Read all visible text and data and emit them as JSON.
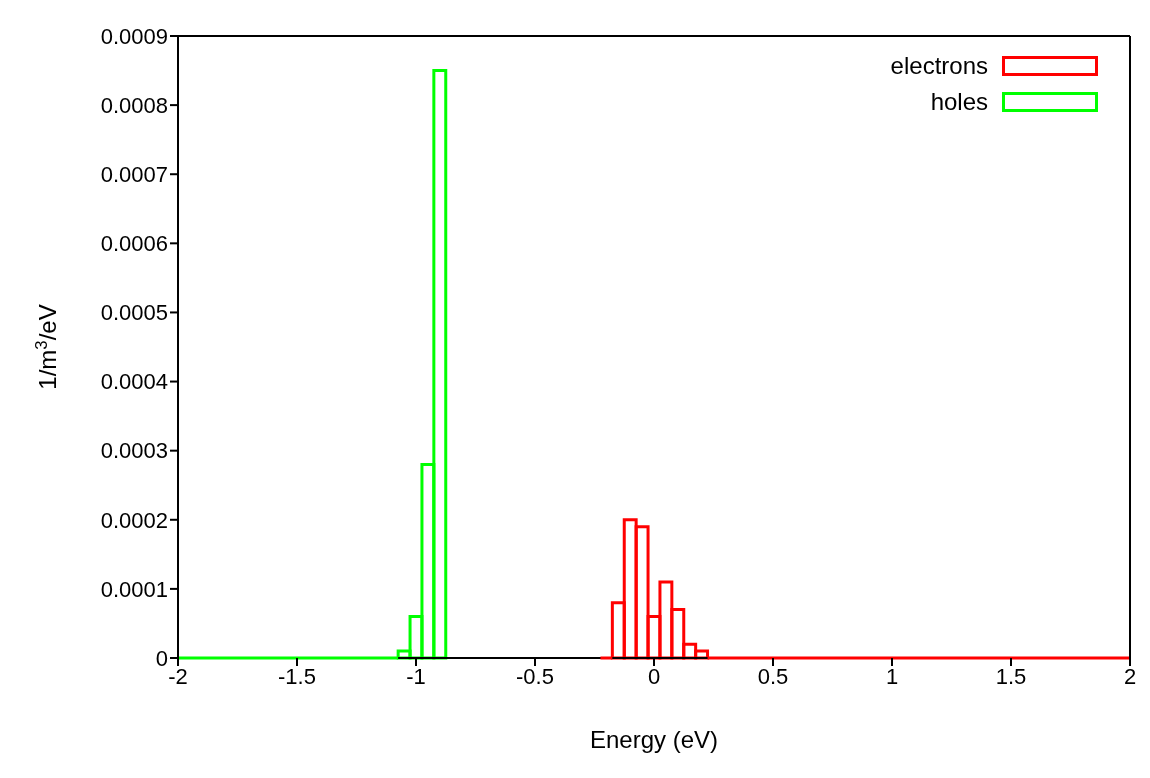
{
  "chart_data": {
    "type": "histogram",
    "xlabel": "Energy (eV)",
    "ylabel": "1/m$^{3}$/eV",
    "bins": [
      -2,
      -1.075,
      -1.025,
      -0.975,
      -0.925,
      -0.875,
      -0.225,
      -0.175,
      -0.125,
      -0.075,
      -0.025,
      0.025,
      0.075,
      0.125,
      0.175,
      0.225,
      2
    ],
    "xlim": [
      -2,
      2
    ],
    "xticks": [
      -2,
      -1.5,
      -1,
      -0.5,
      0,
      0.5,
      1,
      1.5,
      2
    ],
    "ylim": [
      0,
      0.0009
    ],
    "yticks": [
      0,
      0.0001,
      0.0002,
      0.0003,
      0.0004,
      0.0005,
      0.0006,
      0.0007,
      0.0008,
      0.0009
    ],
    "legend": "top right",
    "grid": false,
    "series": [
      {
        "name": "electrons",
        "color": "#ff0000",
        "values": [
          null,
          null,
          null,
          null,
          null,
          null,
          0,
          8e-05,
          0.0002,
          0.00019,
          6e-05,
          0.00011,
          7e-05,
          2e-05,
          1e-05,
          0
        ]
      },
      {
        "name": "holes",
        "color": "#00ff00",
        "values": [
          0,
          1e-05,
          6e-05,
          0.00028,
          0.00085,
          null,
          null,
          null,
          null,
          null,
          null,
          null,
          null,
          null,
          null,
          null
        ]
      }
    ]
  }
}
